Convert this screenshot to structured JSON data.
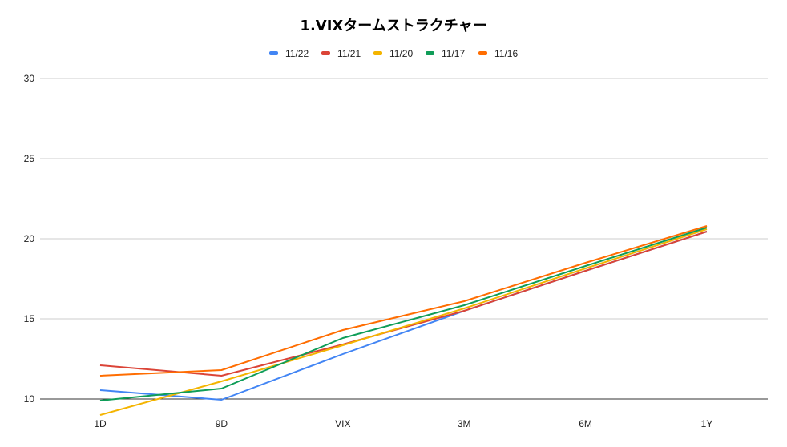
{
  "chart_data": {
    "type": "line",
    "title": "1.VIXタームストラクチャー",
    "xlabel": "",
    "ylabel": "",
    "categories": [
      "1D",
      "9D",
      "VIX",
      "3M",
      "6M",
      "1Y"
    ],
    "ylim": [
      10,
      30
    ],
    "yticks": [
      "10",
      "15",
      "20",
      "25",
      "30"
    ],
    "grid": true,
    "legend_position": "top",
    "series": [
      {
        "name": "11/22",
        "color": "#4285f4",
        "values": [
          10.55,
          9.95,
          12.8,
          15.5,
          18.0,
          20.45
        ]
      },
      {
        "name": "11/21",
        "color": "#db4437",
        "values": [
          12.1,
          11.45,
          13.4,
          15.5,
          18.0,
          20.45
        ]
      },
      {
        "name": "11/20",
        "color": "#f4b400",
        "values": [
          9.0,
          11.1,
          13.35,
          15.65,
          18.15,
          20.6
        ]
      },
      {
        "name": "11/17",
        "color": "#0f9d58",
        "values": [
          9.9,
          10.65,
          13.8,
          15.85,
          18.3,
          20.7
        ]
      },
      {
        "name": "11/16",
        "color": "#ff6d01",
        "values": [
          11.45,
          11.8,
          14.3,
          16.1,
          18.5,
          20.8
        ]
      }
    ]
  }
}
